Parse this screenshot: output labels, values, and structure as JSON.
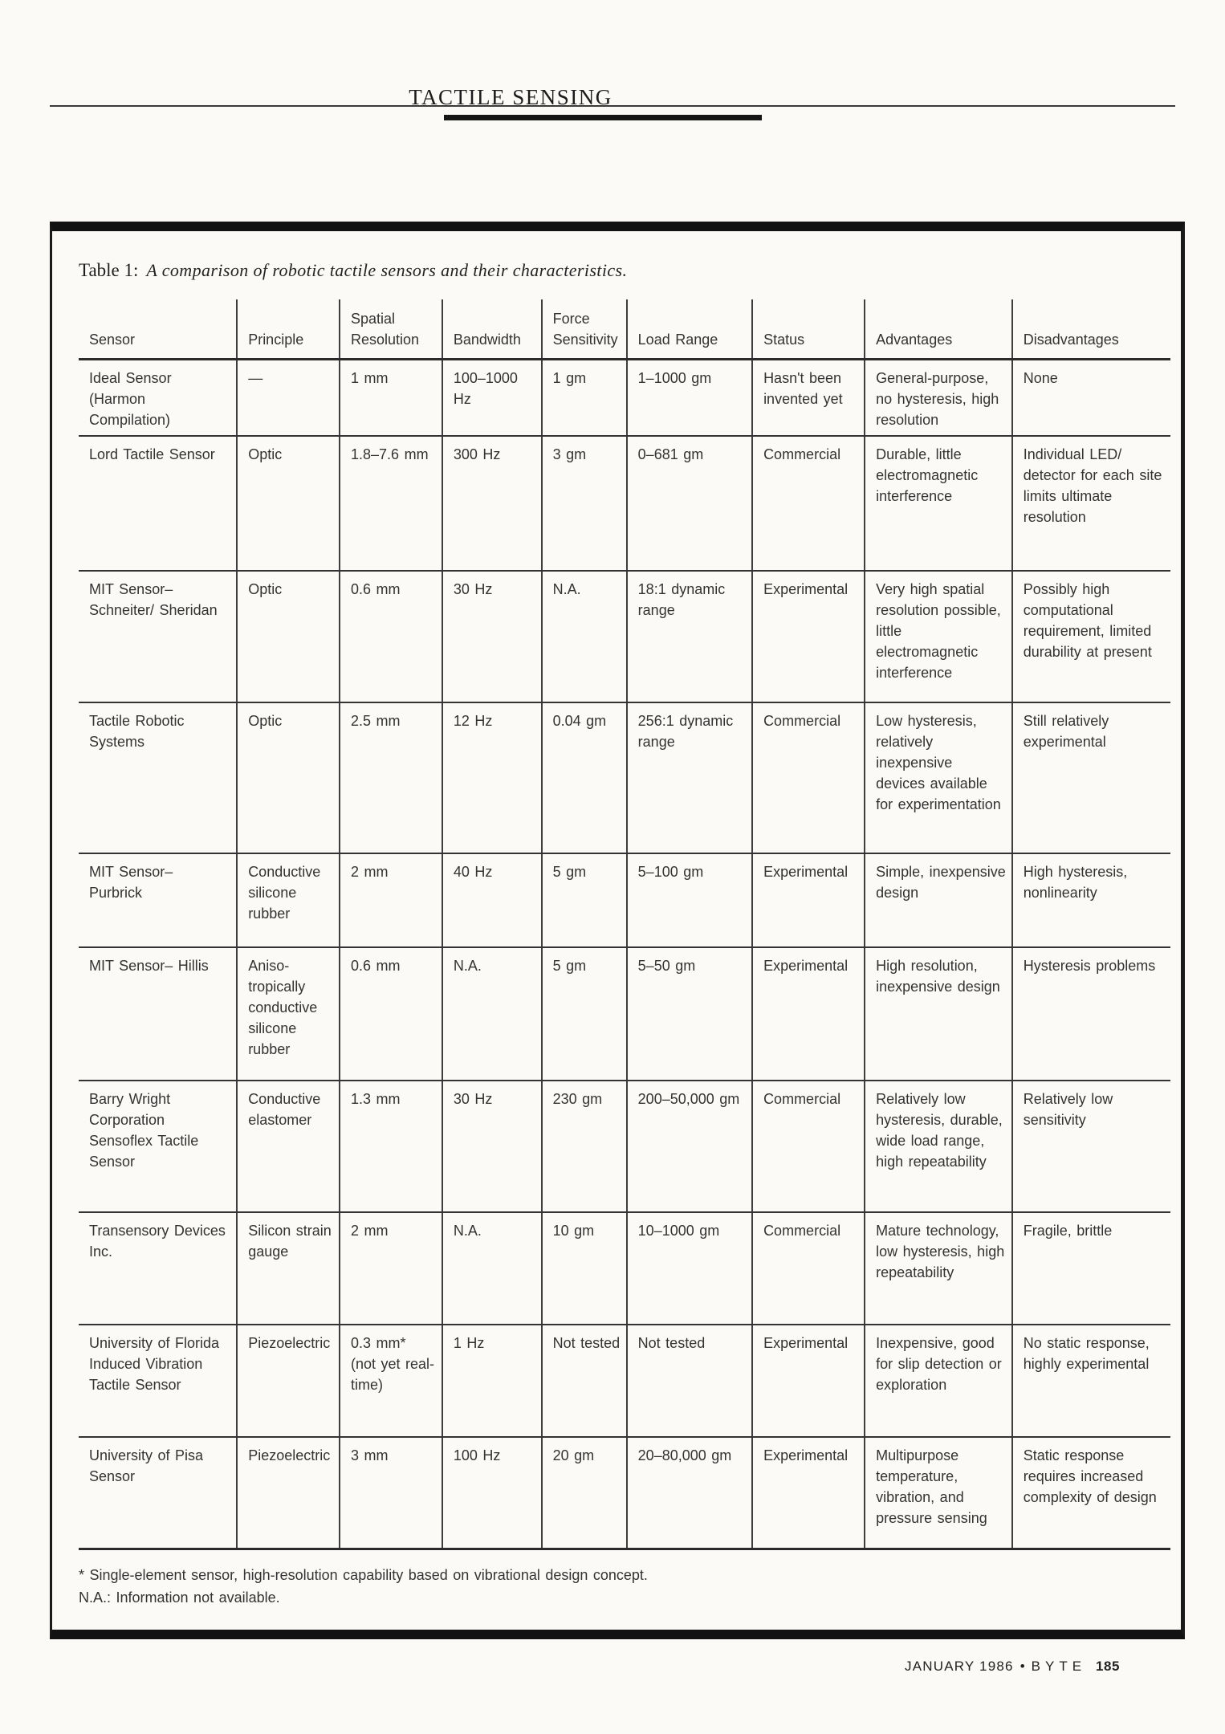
{
  "page": {
    "header_title": "TACTILE SENSING",
    "footer": {
      "issue": "JANUARY 1986",
      "separator": "•",
      "magazine": "BYTE",
      "page_number": "185"
    }
  },
  "colors": {
    "paper": "#fbfaf6",
    "ink": "#2e2e2e",
    "rule": "#1a1a1a"
  },
  "table": {
    "caption_prefix": "Table 1:",
    "caption_text": "A comparison of robotic tactile sensors and their characteristics.",
    "columns": [
      "Sensor",
      "Principle",
      "Spatial Resolution",
      "Bandwidth",
      "Force Sensitivity",
      "Load Range",
      "Status",
      "Advantages",
      "Disadvantages"
    ],
    "rows": [
      [
        "Ideal Sensor (Harmon Compilation)",
        "—",
        "1 mm",
        "100–1000 Hz",
        "1 gm",
        "1–1000 gm",
        "Hasn't been invented yet",
        "General-purpose, no hysteresis, high resolution",
        "None"
      ],
      [
        "Lord Tactile Sensor",
        "Optic",
        "1.8–7.6 mm",
        "300 Hz",
        "3 gm",
        "0–681 gm",
        "Commercial",
        "Durable, little electromagnetic interference",
        "Individual LED/ detector for each site limits ultimate resolution"
      ],
      [
        "MIT Sensor– Schneiter/ Sheridan",
        "Optic",
        "0.6 mm",
        "30 Hz",
        "N.A.",
        "18:1 dynamic range",
        "Experimental",
        "Very high spatial resolution possible, little electromagnetic interference",
        "Possibly high computational requirement, limited durability at present"
      ],
      [
        "Tactile Robotic Systems",
        "Optic",
        "2.5 mm",
        "12 Hz",
        "0.04 gm",
        "256:1 dynamic range",
        "Commercial",
        "Low hysteresis, relatively inexpensive devices available for experimentation",
        "Still relatively experimental"
      ],
      [
        "MIT Sensor– Purbrick",
        "Conductive silicone rubber",
        "2 mm",
        "40 Hz",
        "5 gm",
        "5–100 gm",
        "Experimental",
        "Simple, inexpensive design",
        "High hysteresis, nonlinearity"
      ],
      [
        "MIT Sensor– Hillis",
        "Aniso­tropically conductive silicone rubber",
        "0.6 mm",
        "N.A.",
        "5 gm",
        "5–50 gm",
        "Experimental",
        "High resolution, inexpensive design",
        "Hysteresis problems"
      ],
      [
        "Barry Wright Corporation Sensoflex Tactile Sensor",
        "Conductive elastomer",
        "1.3 mm",
        "30 Hz",
        "230 gm",
        "200–50,000 gm",
        "Commercial",
        "Relatively low hysteresis, durable, wide load range, high repeatability",
        "Relatively low sensitivity"
      ],
      [
        "Transensory Devices Inc.",
        "Silicon strain gauge",
        "2 mm",
        "N.A.",
        "10 gm",
        "10–1000 gm",
        "Commercial",
        "Mature technology, low hysteresis, high repeatability",
        "Fragile, brittle"
      ],
      [
        "University of Florida Induced Vibration Tactile Sensor",
        "Piezoelectric",
        "0.3 mm* (not yet real-time)",
        "1 Hz",
        "Not tested",
        "Not tested",
        "Experimental",
        "Inexpensive, good for slip detection or exploration",
        "No static response, highly experimental"
      ],
      [
        "University of Pisa Sensor",
        "Piezoelectric",
        "3 mm",
        "100 Hz",
        "20 gm",
        "20–80,000 gm",
        "Experimental",
        "Multipurpose temperature, vibration, and pressure sensing",
        "Static response requires increased complexity of design"
      ]
    ],
    "footnotes": [
      "* Single-element sensor, high-resolution capability based on vibrational design concept.",
      "N.A.: Information not available."
    ]
  }
}
